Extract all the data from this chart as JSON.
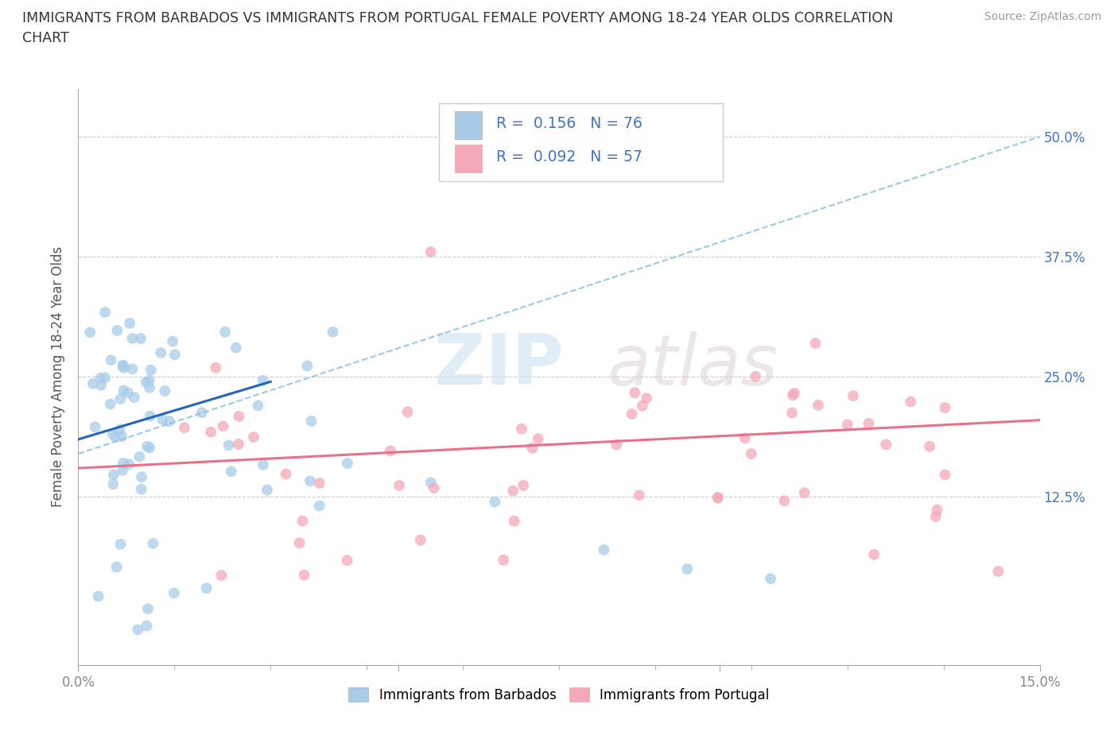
{
  "title_line1": "IMMIGRANTS FROM BARBADOS VS IMMIGRANTS FROM PORTUGAL FEMALE POVERTY AMONG 18-24 YEAR OLDS CORRELATION",
  "title_line2": "CHART",
  "source": "Source: ZipAtlas.com",
  "ylabel": "Female Poverty Among 18-24 Year Olds",
  "xlim": [
    0.0,
    0.15
  ],
  "ylim": [
    -0.05,
    0.55
  ],
  "barbados_color": "#a8cce8",
  "portugal_color": "#f4a8b8",
  "barbados_line_color": "#2266bb",
  "barbados_dash_color": "#88bbdd",
  "portugal_line_color": "#e8708a",
  "R_barbados": 0.156,
  "N_barbados": 76,
  "R_portugal": 0.092,
  "N_portugal": 57,
  "watermark_zip": "ZIP",
  "watermark_atlas": "atlas",
  "grid_color": "#cccccc",
  "background_color": "#ffffff",
  "tick_color_blue": "#4472c4",
  "tick_color_gray": "#888888"
}
